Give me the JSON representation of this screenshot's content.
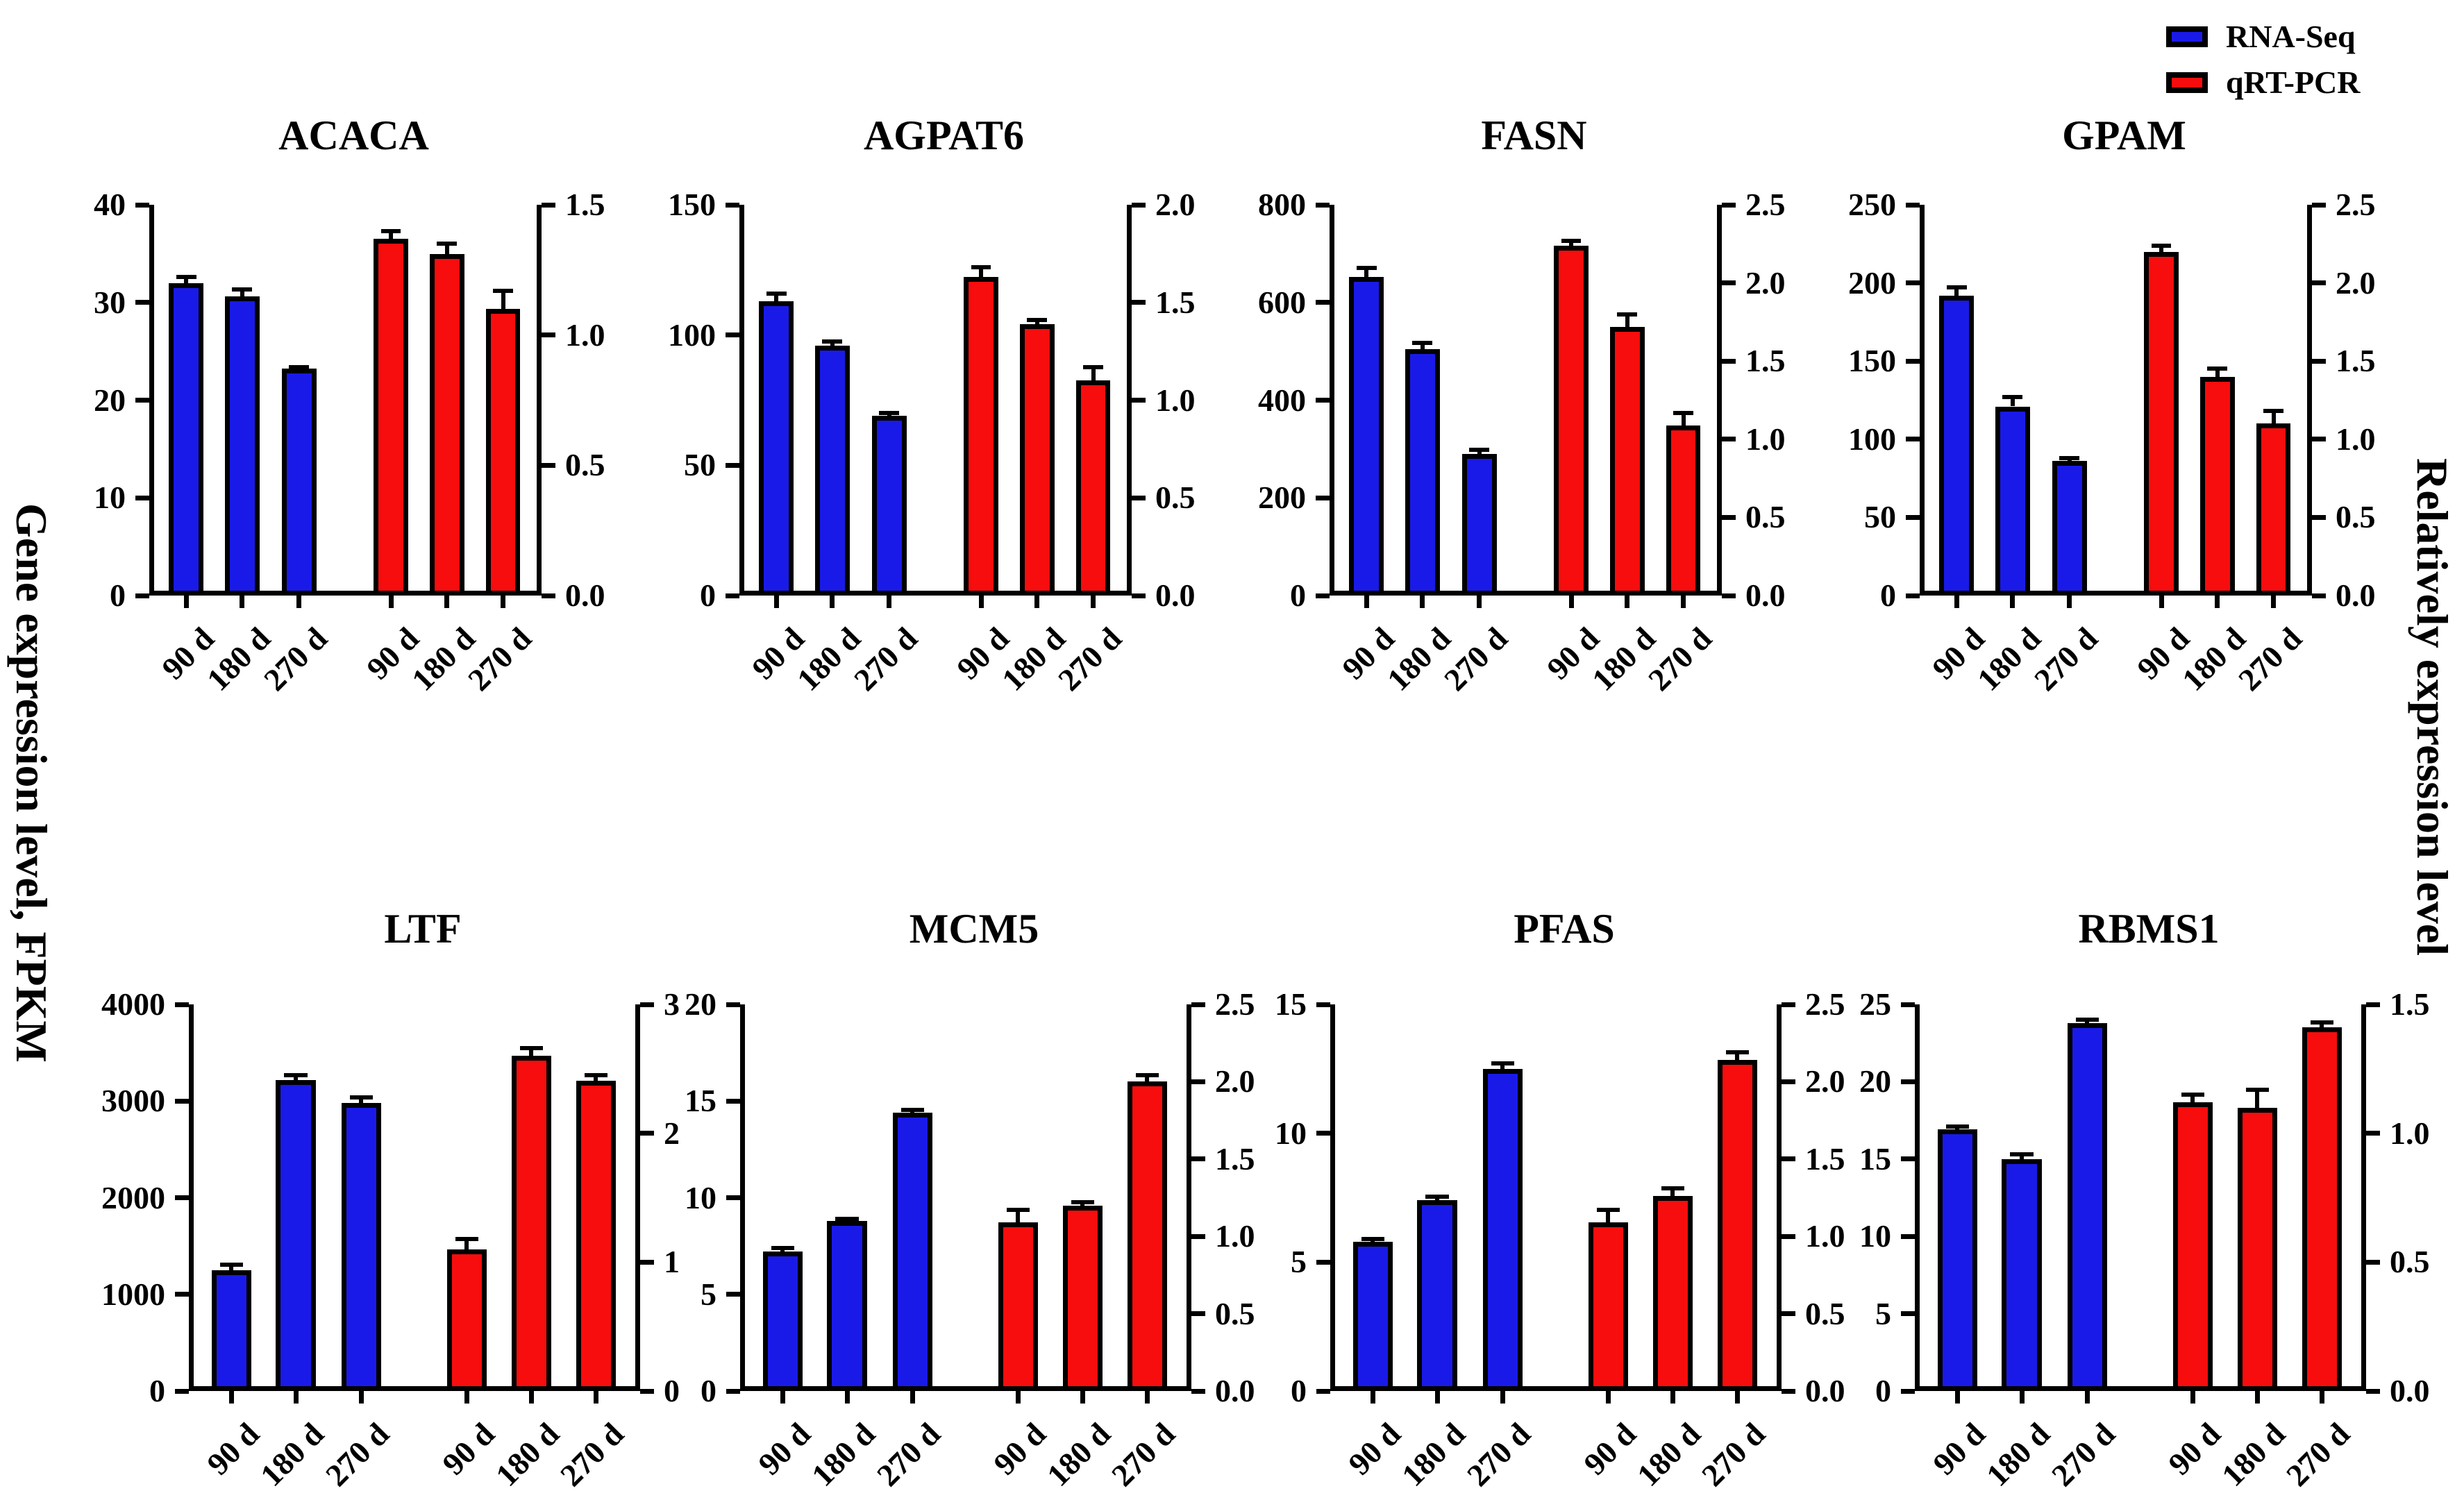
{
  "figure": {
    "ylabel_left": "Gene expression level, FPKM",
    "ylabel_right": "Relatively expression level",
    "legend": [
      {
        "label": "RNA-Seq",
        "color": "#1A1AE8"
      },
      {
        "label": "qRT-PCR",
        "color": "#F70D0D"
      }
    ],
    "axis_color": "#000000",
    "x_unit_labels": [
      "90 d",
      "180 d",
      "270 d"
    ]
  },
  "chart_data": [
    {
      "type": "bar",
      "title": "ACACA",
      "categories": [
        "90 d",
        "180 d",
        "270 d",
        "90 d",
        "180 d",
        "270 d"
      ],
      "left_axis": {
        "max": 40,
        "ticks": [
          "0",
          "10",
          "20",
          "30",
          "40"
        ]
      },
      "right_axis": {
        "max": 1.5,
        "ticks": [
          "0.0",
          "0.5",
          "1.0",
          "1.5"
        ]
      },
      "series": [
        {
          "name": "RNA-Seq",
          "axis": "left",
          "color": "#1A1AE8",
          "values": [
            32.0,
            30.6,
            23.2
          ],
          "errors": [
            0.6,
            0.7,
            0.2
          ]
        },
        {
          "name": "qRT-PCR",
          "axis": "right",
          "color": "#F70D0D",
          "values": [
            1.37,
            1.31,
            1.1
          ],
          "errors": [
            0.03,
            0.04,
            0.07
          ]
        }
      ]
    },
    {
      "type": "bar",
      "title": "AGPAT6",
      "categories": [
        "90 d",
        "180 d",
        "270 d",
        "90 d",
        "180 d",
        "270 d"
      ],
      "left_axis": {
        "max": 150,
        "ticks": [
          "0",
          "50",
          "100",
          "150"
        ]
      },
      "right_axis": {
        "max": 2.0,
        "ticks": [
          "0.0",
          "0.5",
          "1.0",
          "1.5",
          "2.0"
        ]
      },
      "series": [
        {
          "name": "RNA-Seq",
          "axis": "left",
          "color": "#1A1AE8",
          "values": [
            113,
            96,
            69
          ],
          "errors": [
            3,
            1.5,
            1
          ]
        },
        {
          "name": "qRT-PCR",
          "axis": "right",
          "color": "#F70D0D",
          "values": [
            1.63,
            1.39,
            1.1
          ],
          "errors": [
            0.05,
            0.02,
            0.07
          ]
        }
      ]
    },
    {
      "type": "bar",
      "title": "FASN",
      "categories": [
        "90 d",
        "180 d",
        "270 d",
        "90 d",
        "180 d",
        "270 d"
      ],
      "left_axis": {
        "max": 800,
        "ticks": [
          "0",
          "200",
          "400",
          "600",
          "800"
        ]
      },
      "right_axis": {
        "max": 2.5,
        "ticks": [
          "0.0",
          "0.5",
          "1.0",
          "1.5",
          "2.0",
          "2.5"
        ]
      },
      "series": [
        {
          "name": "RNA-Seq",
          "axis": "left",
          "color": "#1A1AE8",
          "values": [
            652,
            505,
            290
          ],
          "errors": [
            18,
            12,
            8
          ]
        },
        {
          "name": "qRT-PCR",
          "axis": "right",
          "color": "#F70D0D",
          "values": [
            2.24,
            1.72,
            1.09
          ],
          "errors": [
            0.03,
            0.08,
            0.08
          ]
        }
      ]
    },
    {
      "type": "bar",
      "title": "GPAM",
      "categories": [
        "90 d",
        "180 d",
        "270 d",
        "90 d",
        "180 d",
        "270 d"
      ],
      "left_axis": {
        "max": 250,
        "ticks": [
          "0",
          "50",
          "100",
          "150",
          "200",
          "250"
        ]
      },
      "right_axis": {
        "max": 2.5,
        "ticks": [
          "0.0",
          "0.5",
          "1.0",
          "1.5",
          "2.0",
          "2.5"
        ]
      },
      "series": [
        {
          "name": "RNA-Seq",
          "axis": "left",
          "color": "#1A1AE8",
          "values": [
            192,
            121,
            86
          ],
          "errors": [
            5,
            6,
            2
          ]
        },
        {
          "name": "qRT-PCR",
          "axis": "right",
          "color": "#F70D0D",
          "values": [
            2.2,
            1.4,
            1.1
          ],
          "errors": [
            0.04,
            0.05,
            0.08
          ]
        }
      ]
    },
    {
      "type": "bar",
      "title": "LTF",
      "categories": [
        "90 d",
        "180 d",
        "270 d",
        "90 d",
        "180 d",
        "270 d"
      ],
      "left_axis": {
        "max": 4000,
        "ticks": [
          "0",
          "1000",
          "2000",
          "3000",
          "4000"
        ]
      },
      "right_axis": {
        "max": 3,
        "ticks": [
          "0",
          "1",
          "2",
          "3"
        ]
      },
      "series": [
        {
          "name": "RNA-Seq",
          "axis": "left",
          "color": "#1A1AE8",
          "values": [
            1250,
            3220,
            2980
          ],
          "errors": [
            60,
            45,
            60
          ]
        },
        {
          "name": "qRT-PCR",
          "axis": "right",
          "color": "#F70D0D",
          "values": [
            1.1,
            2.6,
            2.41
          ],
          "errors": [
            0.08,
            0.06,
            0.04
          ]
        }
      ]
    },
    {
      "type": "bar",
      "title": "MCM5",
      "categories": [
        "90 d",
        "180 d",
        "270 d",
        "90 d",
        "180 d",
        "270 d"
      ],
      "left_axis": {
        "max": 20,
        "ticks": [
          "0",
          "5",
          "10",
          "15",
          "20"
        ]
      },
      "right_axis": {
        "max": 2.5,
        "ticks": [
          "0.0",
          "0.5",
          "1.0",
          "1.5",
          "2.0",
          "2.5"
        ]
      },
      "series": [
        {
          "name": "RNA-Seq",
          "axis": "left",
          "color": "#1A1AE8",
          "values": [
            7.2,
            8.8,
            14.4
          ],
          "errors": [
            0.2,
            0.1,
            0.15
          ]
        },
        {
          "name": "qRT-PCR",
          "axis": "right",
          "color": "#F70D0D",
          "values": [
            1.09,
            1.2,
            2.0
          ],
          "errors": [
            0.08,
            0.02,
            0.04
          ]
        }
      ]
    },
    {
      "type": "bar",
      "title": "PFAS",
      "categories": [
        "90 d",
        "180 d",
        "270 d",
        "90 d",
        "180 d",
        "270 d"
      ],
      "left_axis": {
        "max": 15,
        "ticks": [
          "0",
          "5",
          "10",
          "15"
        ]
      },
      "right_axis": {
        "max": 2.5,
        "ticks": [
          "0.0",
          "0.5",
          "1.0",
          "1.5",
          "2.0",
          "2.5"
        ]
      },
      "series": [
        {
          "name": "RNA-Seq",
          "axis": "left",
          "color": "#1A1AE8",
          "values": [
            5.8,
            7.4,
            12.5
          ],
          "errors": [
            0.1,
            0.15,
            0.2
          ]
        },
        {
          "name": "qRT-PCR",
          "axis": "right",
          "color": "#F70D0D",
          "values": [
            1.09,
            1.26,
            2.14
          ],
          "errors": [
            0.08,
            0.05,
            0.05
          ]
        }
      ]
    },
    {
      "type": "bar",
      "title": "RBMS1",
      "categories": [
        "90 d",
        "180 d",
        "270 d",
        "90 d",
        "180 d",
        "270 d"
      ],
      "left_axis": {
        "max": 25,
        "ticks": [
          "0",
          "5",
          "10",
          "15",
          "20",
          "25"
        ]
      },
      "right_axis": {
        "max": 1.5,
        "ticks": [
          "0.0",
          "0.5",
          "1.0",
          "1.5"
        ]
      },
      "series": [
        {
          "name": "RNA-Seq",
          "axis": "left",
          "color": "#1A1AE8",
          "values": [
            16.9,
            15.0,
            23.8
          ],
          "errors": [
            0.2,
            0.3,
            0.2
          ]
        },
        {
          "name": "qRT-PCR",
          "axis": "right",
          "color": "#F70D0D",
          "values": [
            1.12,
            1.1,
            1.41
          ],
          "errors": [
            0.03,
            0.07,
            0.02
          ]
        }
      ]
    }
  ]
}
